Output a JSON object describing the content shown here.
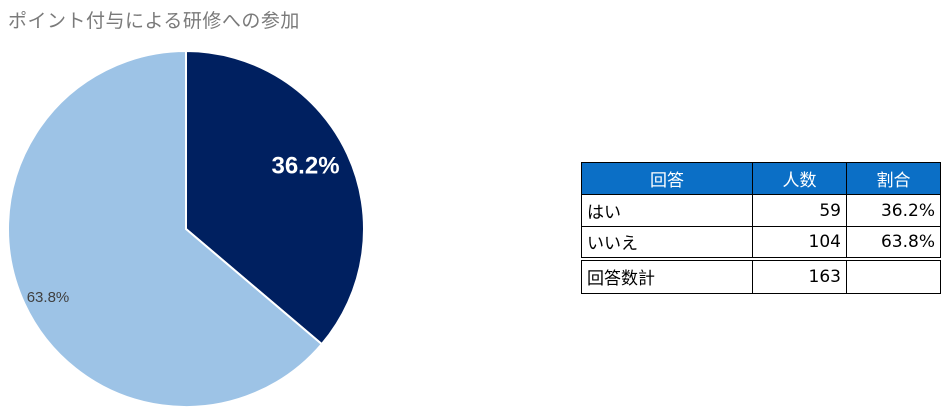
{
  "title": "ポイント付与による研修への参加",
  "chart_data": {
    "type": "pie",
    "title": "ポイント付与による研修への参加",
    "slices": [
      {
        "label": "はい",
        "value": 59,
        "percent_label": "36.2%",
        "color": "#002060"
      },
      {
        "label": "いいえ",
        "value": 104,
        "percent_label": "63.8%",
        "color": "#9dc3e6"
      }
    ]
  },
  "table": {
    "headers": [
      "回答",
      "人数",
      "割合"
    ],
    "rows": [
      [
        "はい",
        "59",
        "36.2%"
      ],
      [
        "いいえ",
        "104",
        "63.8%"
      ]
    ],
    "total": {
      "label": "回答数計",
      "count": "163",
      "ratio": ""
    }
  }
}
